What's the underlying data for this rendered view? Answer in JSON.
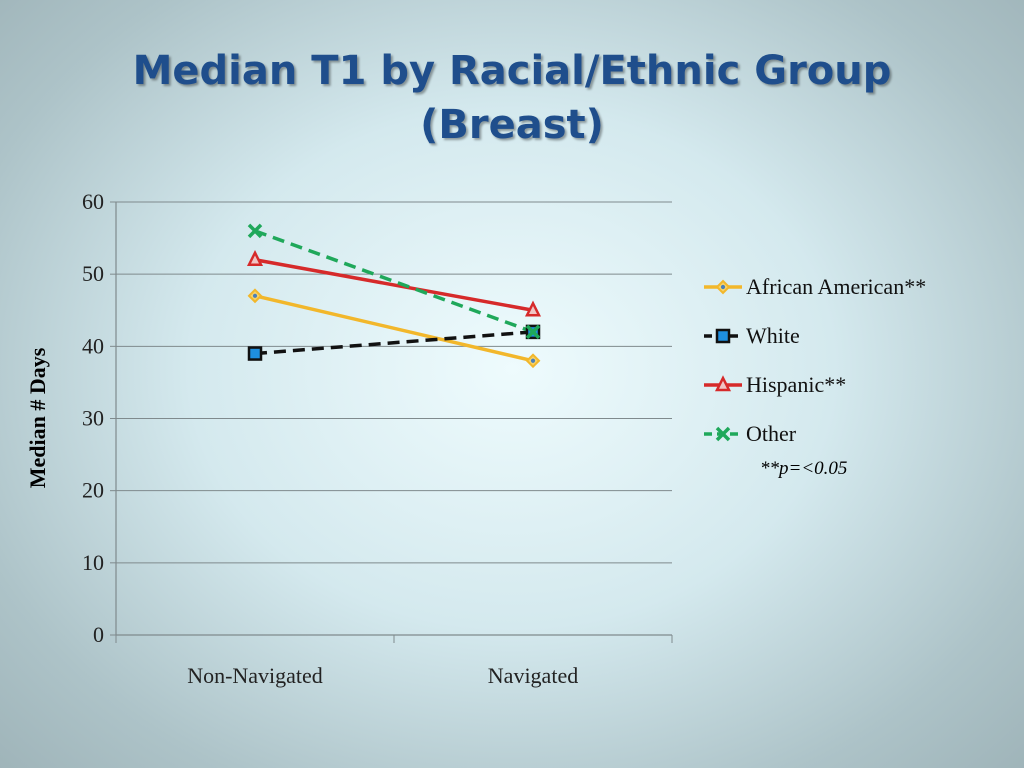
{
  "slide": {
    "title_line1": "Median T1 by Racial/Ethnic Group",
    "title_line2": "(Breast)",
    "footnote": "**p=<0.05"
  },
  "chart_data": {
    "type": "line",
    "title": "",
    "xlabel": "",
    "ylabel": "Median # Days",
    "categories": [
      "Non-Navigated",
      "Navigated"
    ],
    "ylim": [
      0,
      60
    ],
    "yticks": [
      0,
      10,
      20,
      30,
      40,
      50,
      60
    ],
    "grid": true,
    "legend_position": "right",
    "series": [
      {
        "name": "African American**",
        "values": [
          47,
          38
        ],
        "color": "#f2b72b",
        "marker": "diamond",
        "marker_fill": "#4b7fb8",
        "dash": "solid"
      },
      {
        "name": "White",
        "values": [
          39,
          42
        ],
        "color": "#111111",
        "marker": "square",
        "marker_fill": "#1e8fe0",
        "dash": "dashed"
      },
      {
        "name": "Hispanic**",
        "values": [
          52,
          45
        ],
        "color": "#d62a2a",
        "marker": "triangle",
        "marker_fill": "#f0c4c4",
        "dash": "solid"
      },
      {
        "name": "Other",
        "values": [
          56,
          42
        ],
        "color": "#1fa85a",
        "marker": "x",
        "marker_fill": "#1fa85a",
        "dash": "dashed"
      }
    ]
  }
}
